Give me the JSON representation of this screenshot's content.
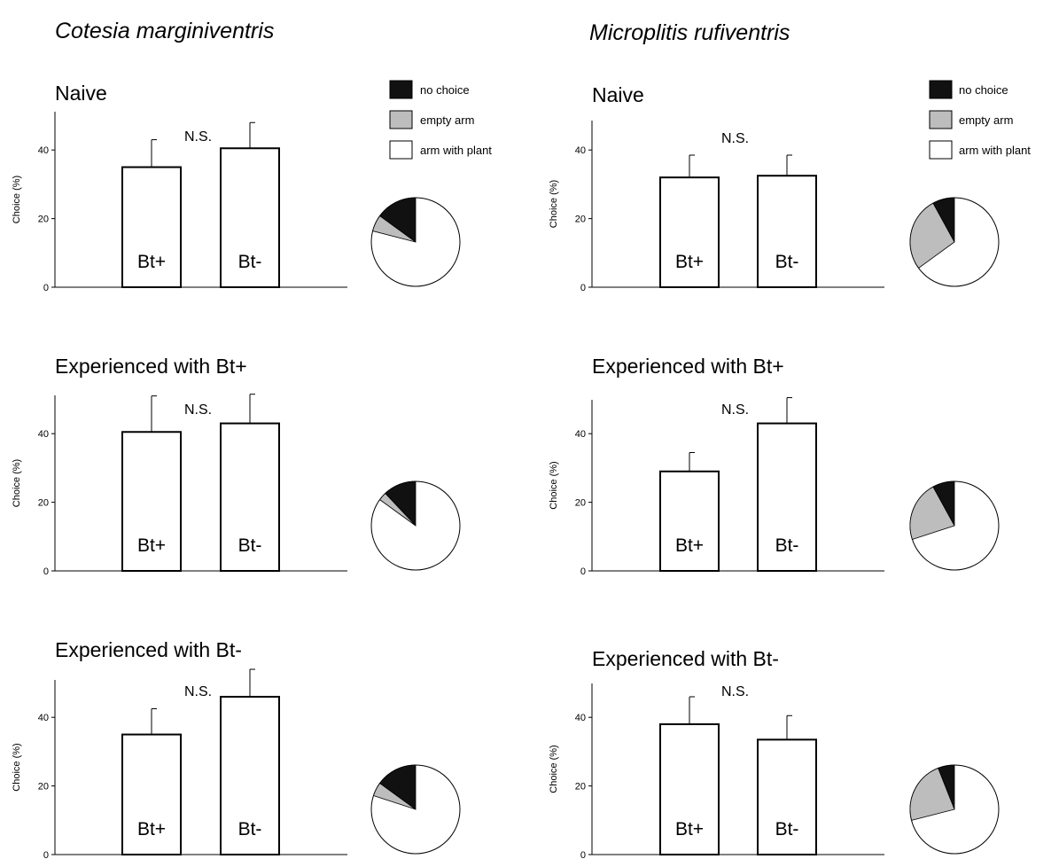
{
  "species": [
    "Cotesia marginiventris",
    "Microplitis rufiventris"
  ],
  "legend": [
    {
      "label": "no choice",
      "color": "#111111"
    },
    {
      "label": "empty arm",
      "color": "#bdbdbd"
    },
    {
      "label": "arm with plant",
      "color": "#ffffff"
    }
  ],
  "chart_data": [
    {
      "type": "bar",
      "species": "Cotesia marginiventris",
      "title": "Naive",
      "ylabel": "Choice (%)",
      "yticks": [
        0,
        20,
        40
      ],
      "ylim": [
        0,
        52
      ],
      "significance": "N.S.",
      "categories": [
        "Bt+",
        "Bt-"
      ],
      "values": [
        35,
        40.5
      ],
      "errors": [
        8,
        7.5
      ],
      "pie": {
        "no_choice": 15,
        "empty_arm": 6,
        "arm_with_plant": 79
      }
    },
    {
      "type": "bar",
      "species": "Cotesia marginiventris",
      "title": "Experienced with Bt+",
      "ylabel": "Choice (%)",
      "yticks": [
        0,
        20,
        40
      ],
      "ylim": [
        0,
        52
      ],
      "significance": "N.S.",
      "categories": [
        "Bt+",
        "Bt-"
      ],
      "values": [
        40.5,
        43
      ],
      "errors": [
        10.5,
        8.5
      ],
      "pie": {
        "no_choice": 12,
        "empty_arm": 3,
        "arm_with_plant": 85
      }
    },
    {
      "type": "bar",
      "species": "Cotesia marginiventris",
      "title": "Experienced with Bt-",
      "ylabel": "Choice (%)",
      "yticks": [
        0,
        20,
        40
      ],
      "ylim": [
        0,
        52
      ],
      "significance": "N.S.",
      "categories": [
        "Bt+",
        "Bt-"
      ],
      "values": [
        35,
        46
      ],
      "errors": [
        7.5,
        8
      ],
      "pie": {
        "no_choice": 15,
        "empty_arm": 5,
        "arm_with_plant": 80
      }
    },
    {
      "type": "bar",
      "species": "Microplitis rufiventris",
      "title": "Naive",
      "ylabel": "Choice (%)",
      "yticks": [
        0,
        20,
        40
      ],
      "ylim": [
        0,
        52
      ],
      "significance": "N.S.",
      "categories": [
        "Bt+",
        "Bt-"
      ],
      "values": [
        32,
        32.5
      ],
      "errors": [
        6.5,
        6
      ],
      "pie": {
        "no_choice": 8,
        "empty_arm": 27,
        "arm_with_plant": 65
      }
    },
    {
      "type": "bar",
      "species": "Microplitis rufiventris",
      "title": "Experienced with Bt+",
      "ylabel": "Choice (%)",
      "yticks": [
        0,
        20,
        40
      ],
      "ylim": [
        0,
        52
      ],
      "significance": "N.S.",
      "categories": [
        "Bt+",
        "Bt-"
      ],
      "values": [
        29,
        43
      ],
      "errors": [
        5.5,
        7.5
      ],
      "pie": {
        "no_choice": 8,
        "empty_arm": 22,
        "arm_with_plant": 70
      }
    },
    {
      "type": "bar",
      "species": "Microplitis rufiventris",
      "title": "Experienced with Bt-",
      "ylabel": "Choice (%)",
      "yticks": [
        0,
        20,
        40
      ],
      "ylim": [
        0,
        52
      ],
      "significance": "N.S.",
      "categories": [
        "Bt+",
        "Bt-"
      ],
      "values": [
        38,
        33.5
      ],
      "errors": [
        8,
        7
      ],
      "pie": {
        "no_choice": 6,
        "empty_arm": 23,
        "arm_with_plant": 71
      }
    }
  ]
}
